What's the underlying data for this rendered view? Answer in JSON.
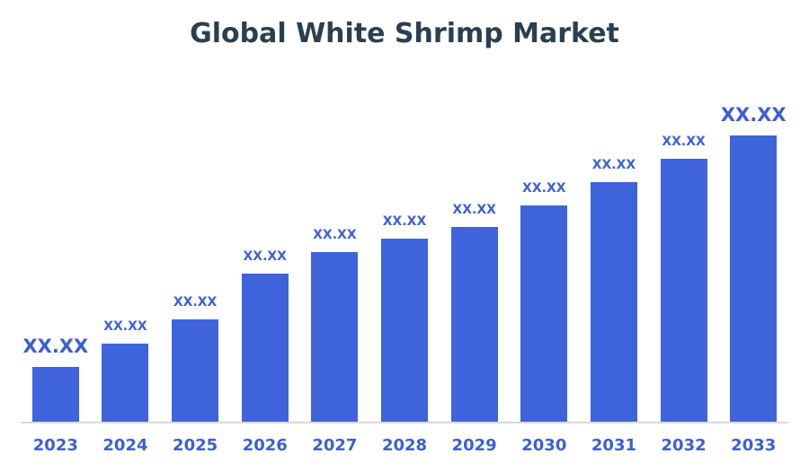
{
  "title": "Global White Shrimp Market",
  "colors": {
    "bar": "#3E63DB",
    "value_label": "#3D60D7",
    "year_label": "#3D5FD2",
    "title": "#2A3F50",
    "axis_line": "#D9D9D9",
    "background": "#FFFFFF"
  },
  "chart_data": {
    "type": "bar",
    "title": "Global White Shrimp Market",
    "xlabel": "",
    "ylabel": "",
    "grid": false,
    "legend": false,
    "y_axis_visible": false,
    "values_masked": true,
    "categories": [
      "2023",
      "2024",
      "2025",
      "2026",
      "2027",
      "2028",
      "2029",
      "2030",
      "2031",
      "2032",
      "2033"
    ],
    "value_labels": [
      "XX.XX",
      "XX.XX",
      "XX.XX",
      "XX.XX",
      "XX.XX",
      "XX.XX",
      "XX.XX",
      "XX.XX",
      "XX.XX",
      "XX.XX",
      "XX.XX"
    ],
    "relative_heights_pct": [
      19.4,
      27.5,
      35.9,
      51.9,
      59.4,
      64.1,
      68.1,
      75.6,
      83.8,
      91.9,
      100
    ],
    "emphasized_labels": [
      "2023",
      "2033"
    ]
  }
}
